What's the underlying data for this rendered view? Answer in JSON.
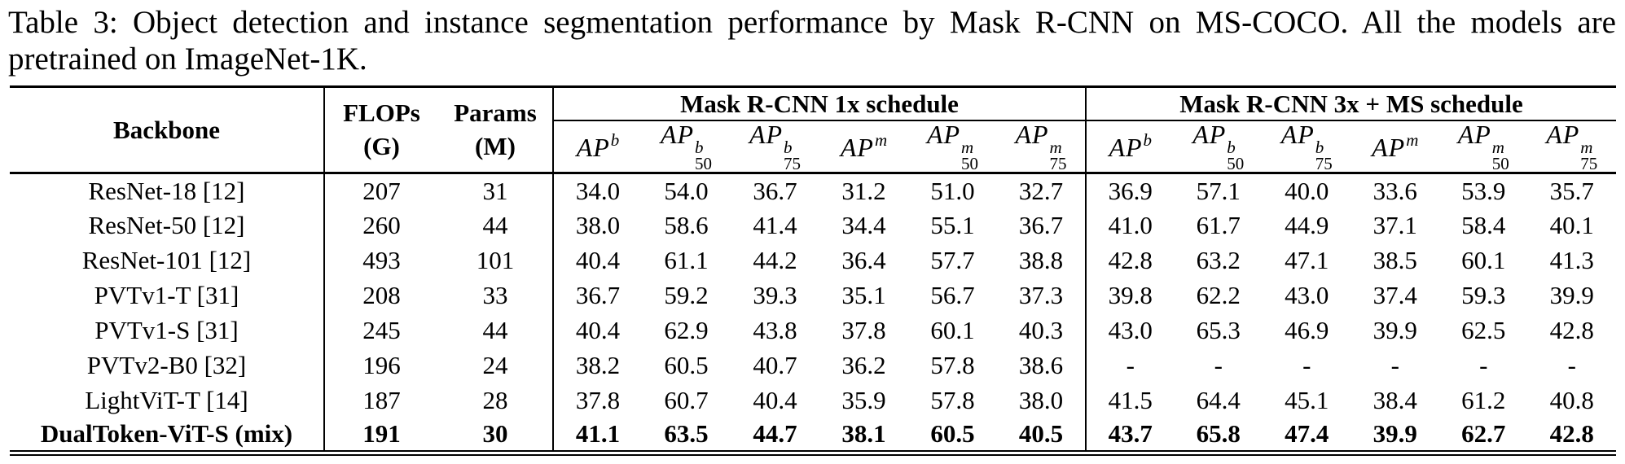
{
  "caption": {
    "line1": "Table 3: Object detection and instance segmentation performance by Mask R-CNN on MS-COCO. All the models are",
    "line2": "pretrained on ImageNet-1K."
  },
  "colors": {
    "text": "#000000",
    "background": "#ffffff",
    "rules": "#000000"
  },
  "table": {
    "header": {
      "backbone_label": "Backbone",
      "flops_line1": "FLOPs",
      "flops_line2": "(G)",
      "params_line1": "Params",
      "params_line2": "(M)",
      "group_1x_label": "Mask R-CNN 1x schedule",
      "group_3x_label": "Mask R-CNN 3x + MS schedule",
      "metric_columns": [
        {
          "base": "AP",
          "sup": "b",
          "sub": ""
        },
        {
          "base": "AP",
          "sup": "b",
          "sub": "50"
        },
        {
          "base": "AP",
          "sup": "b",
          "sub": "75"
        },
        {
          "base": "AP",
          "sup": "m",
          "sub": ""
        },
        {
          "base": "AP",
          "sup": "m",
          "sub": "50"
        },
        {
          "base": "AP",
          "sup": "m",
          "sub": "75"
        }
      ]
    },
    "rows": [
      {
        "backbone": "ResNet-18 [12]",
        "flops": "207",
        "params": "31",
        "mask_rcnn_1x": [
          "34.0",
          "54.0",
          "36.7",
          "31.2",
          "51.0",
          "32.7"
        ],
        "mask_rcnn_3x": [
          "36.9",
          "57.1",
          "40.0",
          "33.6",
          "53.9",
          "35.7"
        ],
        "bold": false
      },
      {
        "backbone": "ResNet-50 [12]",
        "flops": "260",
        "params": "44",
        "mask_rcnn_1x": [
          "38.0",
          "58.6",
          "41.4",
          "34.4",
          "55.1",
          "36.7"
        ],
        "mask_rcnn_3x": [
          "41.0",
          "61.7",
          "44.9",
          "37.1",
          "58.4",
          "40.1"
        ],
        "bold": false
      },
      {
        "backbone": "ResNet-101 [12]",
        "flops": "493",
        "params": "101",
        "mask_rcnn_1x": [
          "40.4",
          "61.1",
          "44.2",
          "36.4",
          "57.7",
          "38.8"
        ],
        "mask_rcnn_3x": [
          "42.8",
          "63.2",
          "47.1",
          "38.5",
          "60.1",
          "41.3"
        ],
        "bold": false
      },
      {
        "backbone": "PVTv1-T [31]",
        "flops": "208",
        "params": "33",
        "mask_rcnn_1x": [
          "36.7",
          "59.2",
          "39.3",
          "35.1",
          "56.7",
          "37.3"
        ],
        "mask_rcnn_3x": [
          "39.8",
          "62.2",
          "43.0",
          "37.4",
          "59.3",
          "39.9"
        ],
        "bold": false
      },
      {
        "backbone": "PVTv1-S [31]",
        "flops": "245",
        "params": "44",
        "mask_rcnn_1x": [
          "40.4",
          "62.9",
          "43.8",
          "37.8",
          "60.1",
          "40.3"
        ],
        "mask_rcnn_3x": [
          "43.0",
          "65.3",
          "46.9",
          "39.9",
          "62.5",
          "42.8"
        ],
        "bold": false
      },
      {
        "backbone": "PVTv2-B0 [32]",
        "flops": "196",
        "params": "24",
        "mask_rcnn_1x": [
          "38.2",
          "60.5",
          "40.7",
          "36.2",
          "57.8",
          "38.6"
        ],
        "mask_rcnn_3x": [
          "-",
          "-",
          "-",
          "-",
          "-",
          "-"
        ],
        "bold": false
      },
      {
        "backbone": "LightViT-T [14]",
        "flops": "187",
        "params": "28",
        "mask_rcnn_1x": [
          "37.8",
          "60.7",
          "40.4",
          "35.9",
          "57.8",
          "38.0"
        ],
        "mask_rcnn_3x": [
          "41.5",
          "64.4",
          "45.1",
          "38.4",
          "61.2",
          "40.8"
        ],
        "bold": false
      },
      {
        "backbone": "DualToken-ViT-S (mix)",
        "flops": "191",
        "params": "30",
        "mask_rcnn_1x": [
          "41.1",
          "63.5",
          "44.7",
          "38.1",
          "60.5",
          "40.5"
        ],
        "mask_rcnn_3x": [
          "43.7",
          "65.8",
          "47.4",
          "39.9",
          "62.7",
          "42.8"
        ],
        "bold": true
      }
    ]
  }
}
